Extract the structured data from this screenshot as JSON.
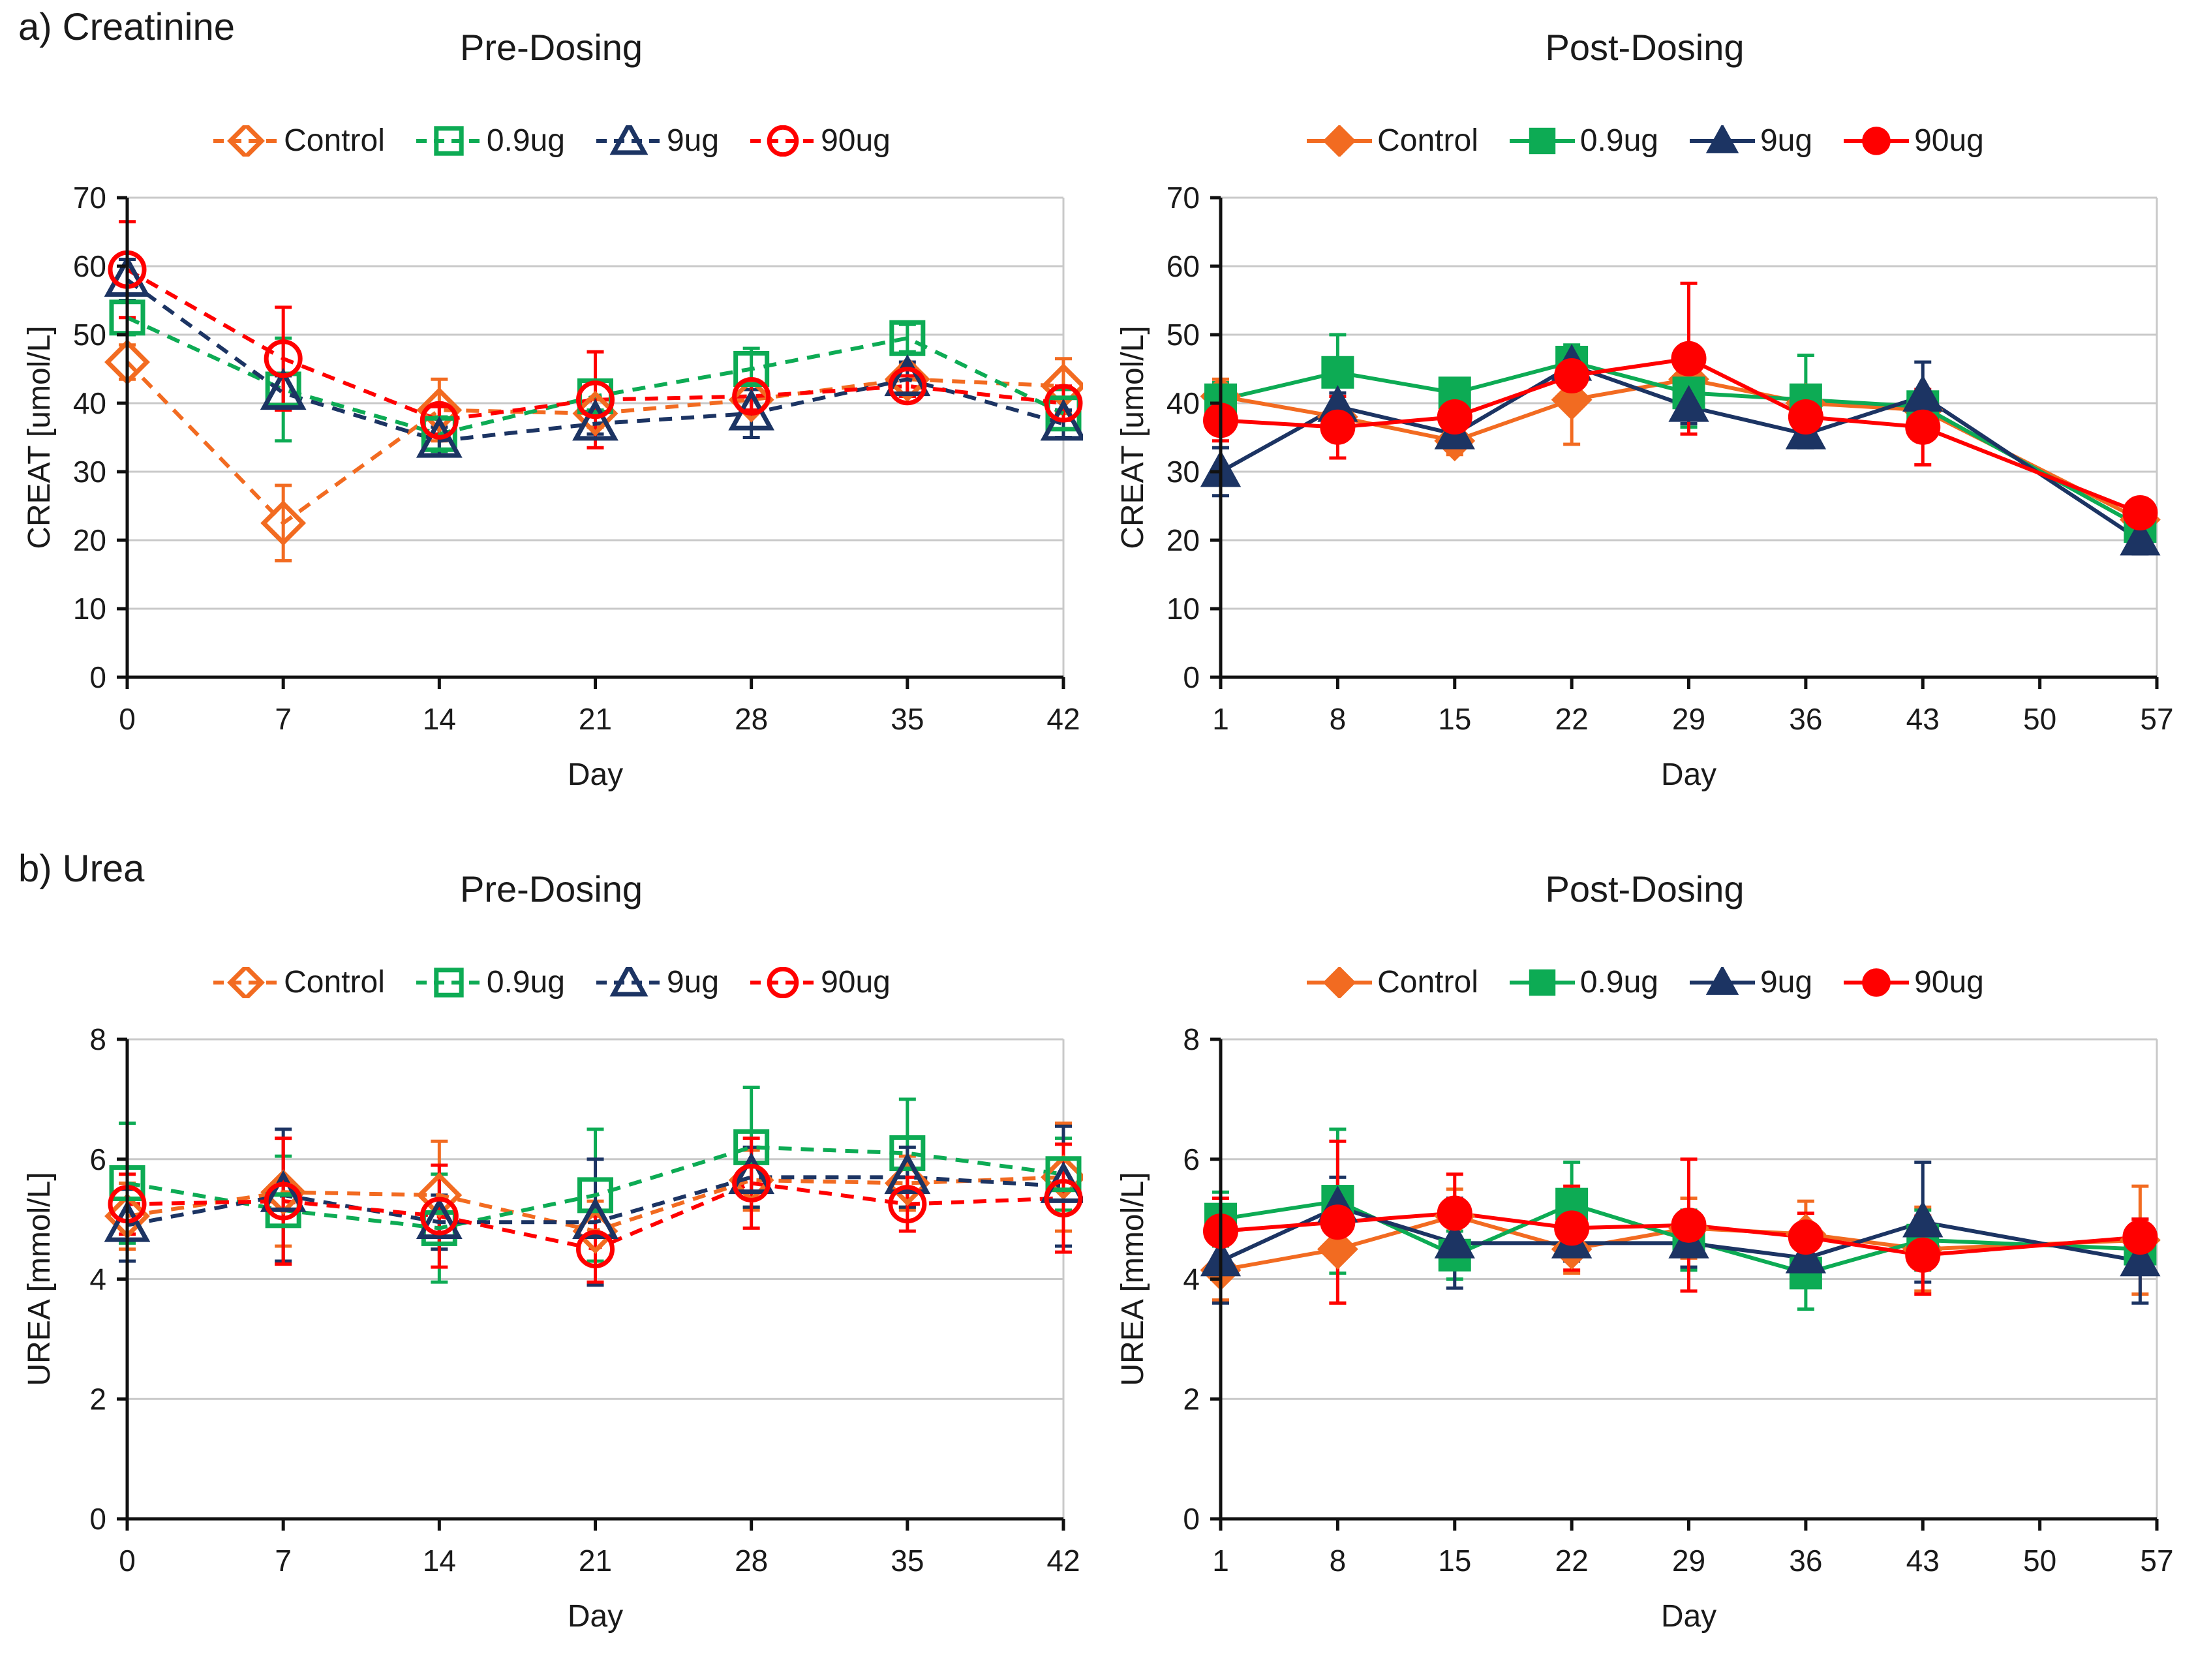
{
  "sections": [
    {
      "label": "a) Creatinine"
    },
    {
      "label": "b) Urea"
    }
  ],
  "chart_data": [
    {
      "type": "line",
      "title": "Pre-Dosing",
      "section": "a) Creatinine",
      "ylabel": "CREAT [umol/L]",
      "xlabel": "Day",
      "ylim": [
        0,
        70
      ],
      "yticks": [
        0,
        10,
        20,
        30,
        40,
        50,
        60,
        70
      ],
      "xlim": [
        0,
        42
      ],
      "xticks": [
        0,
        7,
        14,
        21,
        28,
        35,
        42
      ],
      "grid": true,
      "legend_position": "top",
      "marker_style": "open",
      "line_style": "dashed",
      "error_bars": true,
      "x": [
        0,
        7,
        14,
        21,
        28,
        35,
        42
      ],
      "series": [
        {
          "name": "Control",
          "color": "#F26B21",
          "marker": "diamond",
          "values": [
            46,
            22.5,
            39,
            38.5,
            40.5,
            43.5,
            42.5
          ],
          "errors": [
            2.5,
            5.5,
            4.5,
            2,
            1.5,
            2,
            4
          ]
        },
        {
          "name": "0.9ug",
          "color": "#0DAB54",
          "marker": "square",
          "values": [
            52.5,
            42,
            35.5,
            41,
            45,
            49.5,
            38.5
          ],
          "errors": [
            2.5,
            7.5,
            2.5,
            2,
            3,
            2,
            3.5
          ]
        },
        {
          "name": "9ug",
          "color": "#1C3463",
          "marker": "triangle",
          "values": [
            58,
            41.5,
            34.5,
            37,
            38.5,
            43.5,
            37
          ],
          "errors": [
            3,
            2.5,
            2,
            1.5,
            3.5,
            2.5,
            2
          ]
        },
        {
          "name": "90ug",
          "color": "#FF0000",
          "marker": "circle",
          "values": [
            59.5,
            46.5,
            37.5,
            40.5,
            41,
            42.5,
            40
          ],
          "errors": [
            7,
            7.5,
            2,
            7,
            2,
            1.5,
            2.5
          ]
        }
      ]
    },
    {
      "type": "line",
      "title": "Post-Dosing",
      "section": "a) Creatinine",
      "ylabel": "CREAT [umol/L]",
      "xlabel": "Day",
      "ylim": [
        0,
        70
      ],
      "yticks": [
        0,
        10,
        20,
        30,
        40,
        50,
        60,
        70
      ],
      "xlim": [
        1,
        57
      ],
      "xticks": [
        1,
        8,
        15,
        22,
        29,
        36,
        43,
        50,
        57
      ],
      "grid": true,
      "legend_position": "top",
      "marker_style": "filled",
      "line_style": "solid",
      "error_bars": true,
      "x": [
        1,
        8,
        15,
        22,
        29,
        36,
        43,
        56
      ],
      "series": [
        {
          "name": "Control",
          "color": "#F26B21",
          "marker": "diamond",
          "values": [
            41,
            38,
            34.5,
            40.5,
            43.5,
            40,
            39,
            23
          ],
          "errors": [
            2.5,
            2,
            2,
            6.5,
            5,
            2,
            2,
            2
          ]
        },
        {
          "name": "0.9ug",
          "color": "#0DAB54",
          "marker": "square",
          "values": [
            40.5,
            44.5,
            41.5,
            46,
            41.5,
            40.5,
            39.5,
            22
          ],
          "errors": [
            2.5,
            5.5,
            2,
            2.5,
            5,
            6.5,
            2,
            2
          ]
        },
        {
          "name": "9ug",
          "color": "#1C3463",
          "marker": "triangle",
          "values": [
            30,
            39.5,
            35.5,
            45.5,
            39.5,
            35.5,
            41,
            20
          ],
          "errors": [
            3.5,
            2,
            2,
            2.5,
            2.5,
            2,
            5,
            2
          ]
        },
        {
          "name": "90ug",
          "color": "#FF0000",
          "marker": "circle",
          "values": [
            37.5,
            36.5,
            38,
            44,
            46.5,
            38,
            36.5,
            24
          ],
          "errors": [
            3,
            4.5,
            2,
            2.5,
            11,
            2,
            5.5,
            2
          ]
        }
      ]
    },
    {
      "type": "line",
      "title": "Pre-Dosing",
      "section": "b) Urea",
      "ylabel": "UREA [mmol/L]",
      "xlabel": "Day",
      "ylim": [
        0,
        8
      ],
      "yticks": [
        0,
        2,
        4,
        6,
        8
      ],
      "xlim": [
        0,
        42
      ],
      "xticks": [
        0,
        7,
        14,
        21,
        28,
        35,
        42
      ],
      "grid": true,
      "legend_position": "top",
      "marker_style": "open",
      "line_style": "dashed",
      "error_bars": true,
      "x": [
        0,
        7,
        14,
        21,
        28,
        35,
        42
      ],
      "series": [
        {
          "name": "Control",
          "color": "#F26B21",
          "marker": "diamond",
          "values": [
            5.05,
            5.45,
            5.4,
            4.8,
            5.65,
            5.6,
            5.7
          ],
          "errors": [
            0.55,
            0.9,
            0.9,
            0.5,
            0.5,
            0.45,
            0.9
          ]
        },
        {
          "name": "0.9ug",
          "color": "#0DAB54",
          "marker": "square",
          "values": [
            5.6,
            5.15,
            4.85,
            5.4,
            6.2,
            6.1,
            5.75
          ],
          "errors": [
            1.0,
            0.9,
            0.9,
            1.1,
            1.0,
            0.9,
            0.6
          ]
        },
        {
          "name": "9ug",
          "color": "#1C3463",
          "marker": "triangle",
          "values": [
            4.9,
            5.4,
            4.95,
            4.95,
            5.7,
            5.7,
            5.55
          ],
          "errors": [
            0.6,
            1.1,
            0.45,
            1.05,
            0.5,
            0.5,
            1.0
          ]
        },
        {
          "name": "90ug",
          "color": "#FF0000",
          "marker": "circle",
          "values": [
            5.25,
            5.3,
            5.05,
            4.5,
            5.6,
            5.25,
            5.35
          ],
          "errors": [
            0.5,
            1.05,
            0.85,
            0.55,
            0.75,
            0.45,
            0.9
          ]
        }
      ]
    },
    {
      "type": "line",
      "title": "Post-Dosing",
      "section": "b) Urea",
      "ylabel": "UREA [mmol/L]",
      "xlabel": "Day",
      "ylim": [
        0,
        8
      ],
      "yticks": [
        0,
        2,
        4,
        6,
        8
      ],
      "xlim": [
        1,
        57
      ],
      "xticks": [
        1,
        8,
        15,
        22,
        29,
        36,
        43,
        50,
        57
      ],
      "grid": true,
      "legend_position": "top",
      "marker_style": "filled",
      "line_style": "solid",
      "error_bars": true,
      "x": [
        1,
        8,
        15,
        22,
        29,
        36,
        43,
        56
      ],
      "series": [
        {
          "name": "Control",
          "color": "#F26B21",
          "marker": "diamond",
          "values": [
            4.15,
            4.5,
            5.05,
            4.5,
            4.85,
            4.75,
            4.5,
            4.65
          ],
          "errors": [
            0.5,
            0.9,
            0.45,
            0.4,
            0.5,
            0.55,
            0.7,
            0.9
          ]
        },
        {
          "name": "0.9ug",
          "color": "#0DAB54",
          "marker": "square",
          "values": [
            5.0,
            5.3,
            4.4,
            5.25,
            4.65,
            4.1,
            4.65,
            4.5
          ],
          "errors": [
            0.45,
            1.2,
            0.4,
            0.7,
            0.5,
            0.6,
            0.5,
            0.4
          ]
        },
        {
          "name": "9ug",
          "color": "#1C3463",
          "marker": "triangle",
          "values": [
            4.3,
            5.2,
            4.6,
            4.6,
            4.6,
            4.35,
            4.95,
            4.3
          ],
          "errors": [
            0.7,
            0.5,
            0.75,
            0.3,
            0.4,
            0.4,
            1.0,
            0.7
          ]
        },
        {
          "name": "90ug",
          "color": "#FF0000",
          "marker": "circle",
          "values": [
            4.8,
            4.95,
            5.1,
            4.85,
            4.9,
            4.7,
            4.4,
            4.7
          ],
          "errors": [
            0.55,
            1.35,
            0.65,
            0.7,
            1.1,
            0.4,
            0.65,
            0.3
          ]
        }
      ]
    }
  ]
}
